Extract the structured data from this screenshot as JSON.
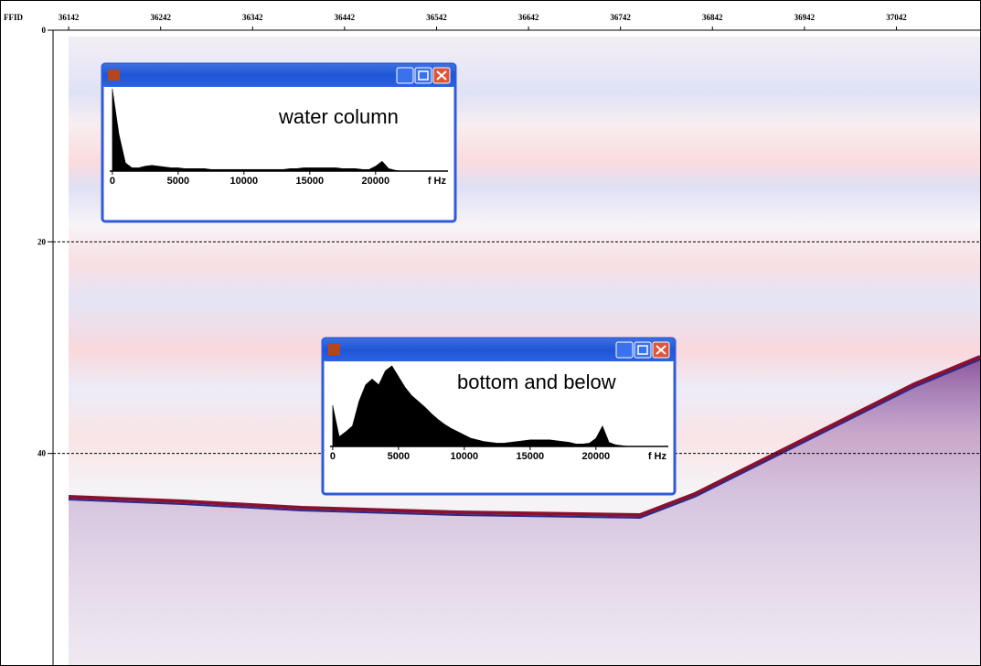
{
  "chart_data": [
    {
      "type": "profile",
      "x_label": "FFID",
      "xlim": [
        36125,
        37134
      ],
      "xticks": [
        36142,
        36242,
        36342,
        36442,
        36542,
        36642,
        36742,
        36842,
        36942,
        37042
      ],
      "ylim": [
        0,
        60
      ],
      "yticks": [
        0,
        20,
        40
      ],
      "grid": true
    },
    {
      "type": "area",
      "title": "water column",
      "x_label": "f Hz",
      "color": "#000000",
      "xlim": [
        -200,
        25500
      ],
      "ylim": [
        0,
        100
      ],
      "xticks": [
        0,
        5000,
        10000,
        15000,
        20000
      ],
      "x": [
        0,
        500,
        1000,
        1500,
        2000,
        2500,
        3000,
        3500,
        4000,
        4500,
        5000,
        5500,
        6000,
        6500,
        7000,
        7500,
        8000,
        8500,
        9000,
        9500,
        10000,
        10500,
        11000,
        11500,
        12000,
        12500,
        13000,
        13500,
        14000,
        14500,
        15000,
        15500,
        16000,
        16500,
        17000,
        17500,
        18000,
        18500,
        19000,
        19500,
        20000,
        20500,
        21000,
        21500,
        22000,
        22500,
        23000,
        23500,
        24000,
        24500,
        25000
      ],
      "values": [
        100,
        45,
        10,
        4,
        4,
        6,
        7,
        6,
        5,
        4,
        4,
        3,
        3,
        3,
        3,
        2,
        2,
        2,
        2,
        2,
        2,
        2,
        2,
        2,
        2,
        2,
        2,
        3,
        3,
        4,
        4,
        4,
        4,
        4,
        4,
        3,
        3,
        3,
        2,
        2,
        6,
        12,
        3,
        1,
        0,
        0,
        0,
        0,
        0,
        0,
        0
      ]
    },
    {
      "type": "area",
      "title": "bottom and below",
      "x_label": "f Hz",
      "color": "#000000",
      "xlim": [
        -200,
        25500
      ],
      "ylim": [
        0,
        100
      ],
      "xticks": [
        0,
        5000,
        10000,
        15000,
        20000
      ],
      "x": [
        0,
        500,
        1000,
        1500,
        2000,
        2500,
        3000,
        3500,
        4000,
        4500,
        5000,
        5500,
        6000,
        6500,
        7000,
        7500,
        8000,
        8500,
        9000,
        9500,
        10000,
        10500,
        11000,
        11500,
        12000,
        12500,
        13000,
        13500,
        14000,
        14500,
        15000,
        15500,
        16000,
        16500,
        17000,
        17500,
        18000,
        18500,
        19000,
        19500,
        20000,
        20500,
        21000,
        21500,
        22000,
        22500,
        23000,
        23500,
        24000,
        24500,
        25000
      ],
      "values": [
        50,
        12,
        18,
        25,
        55,
        75,
        82,
        75,
        92,
        98,
        85,
        72,
        62,
        55,
        48,
        40,
        33,
        27,
        22,
        18,
        14,
        10,
        8,
        6,
        5,
        4,
        4,
        5,
        6,
        7,
        8,
        8,
        8,
        8,
        7,
        6,
        5,
        3,
        3,
        4,
        10,
        25,
        5,
        2,
        1,
        0,
        0,
        0,
        0,
        0,
        0
      ]
    }
  ]
}
